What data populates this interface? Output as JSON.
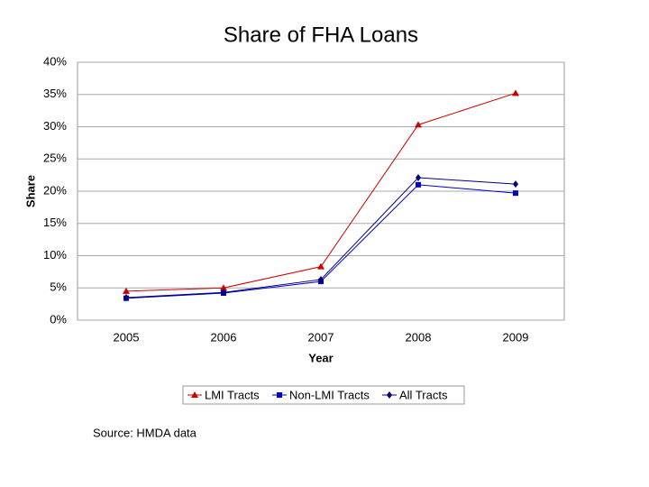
{
  "chart_data": {
    "type": "line",
    "title": "Share of FHA Loans",
    "x_label": "Year",
    "y_label": "Share",
    "categories": [
      "2005",
      "2006",
      "2007",
      "2008",
      "2009"
    ],
    "series": [
      {
        "name": "LMI Tracts",
        "color": "#cc0000",
        "marker": "triangle",
        "values": [
          4.5,
          5.0,
          8.3,
          30.3,
          35.2
        ]
      },
      {
        "name": "Non-LMI Tracts",
        "color": "#0000cc",
        "marker": "square",
        "values": [
          3.4,
          4.2,
          6.0,
          21.0,
          19.7
        ]
      },
      {
        "name": "All Tracts",
        "color": "#000080",
        "marker": "diamond",
        "values": [
          3.5,
          4.3,
          6.3,
          22.1,
          21.1
        ]
      }
    ],
    "ylim": [
      0,
      40
    ],
    "yticks": [
      {
        "value": 0,
        "label": "0%"
      },
      {
        "value": 5,
        "label": "5%"
      },
      {
        "value": 10,
        "label": "10%"
      },
      {
        "value": 15,
        "label": "15%"
      },
      {
        "value": 20,
        "label": "20%"
      },
      {
        "value": 25,
        "label": "25%"
      },
      {
        "value": 30,
        "label": "30%"
      },
      {
        "value": 35,
        "label": "35%"
      },
      {
        "value": 40,
        "label": "40%"
      }
    ],
    "grid": true,
    "legend": "bottom",
    "source": "Source: HMDA data"
  }
}
